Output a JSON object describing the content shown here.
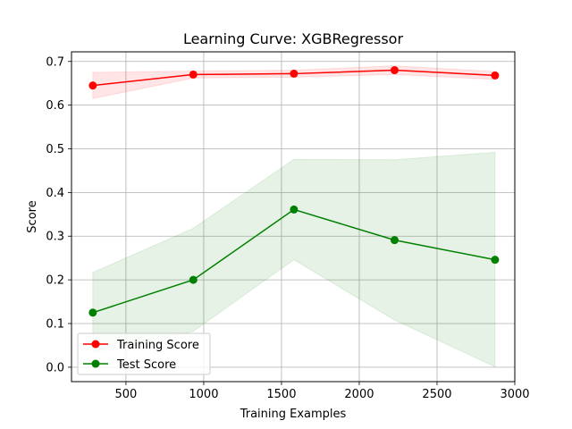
{
  "chart_data": {
    "type": "line",
    "title": "Learning Curve: XGBRegressor",
    "xlabel": "Training Examples",
    "ylabel": "Score",
    "xlim": [
      150,
      3000
    ],
    "ylim": [
      -0.033,
      0.722
    ],
    "grid": true,
    "legend_position": "lower-left",
    "x_ticks": [
      500,
      1000,
      1500,
      2000,
      2500,
      3000
    ],
    "y_ticks": [
      0.0,
      0.1,
      0.2,
      0.3,
      0.4,
      0.5,
      0.6,
      0.7
    ],
    "x_tick_labels": [
      "500",
      "1000",
      "1500",
      "2000",
      "2500",
      "3000"
    ],
    "y_tick_labels": [
      "0.0",
      "0.1",
      "0.2",
      "0.3",
      "0.4",
      "0.5",
      "0.6",
      "0.7"
    ],
    "x": [
      287,
      933,
      1580,
      2227,
      2873
    ],
    "series": [
      {
        "name": "Training Score",
        "color": "#ff0000",
        "band_color": "#ff0000",
        "values": [
          0.645,
          0.67,
          0.672,
          0.68,
          0.668
        ],
        "band_low": [
          0.615,
          0.662,
          0.664,
          0.67,
          0.659
        ],
        "band_high": [
          0.675,
          0.678,
          0.68,
          0.69,
          0.677
        ]
      },
      {
        "name": "Test Score",
        "color": "#008000",
        "band_color": "#008000",
        "values": [
          0.125,
          0.2,
          0.361,
          0.291,
          0.246
        ],
        "band_low": [
          0.033,
          0.082,
          0.246,
          0.108,
          0.001
        ],
        "band_high": [
          0.217,
          0.318,
          0.476,
          0.475,
          0.492
        ]
      }
    ]
  }
}
